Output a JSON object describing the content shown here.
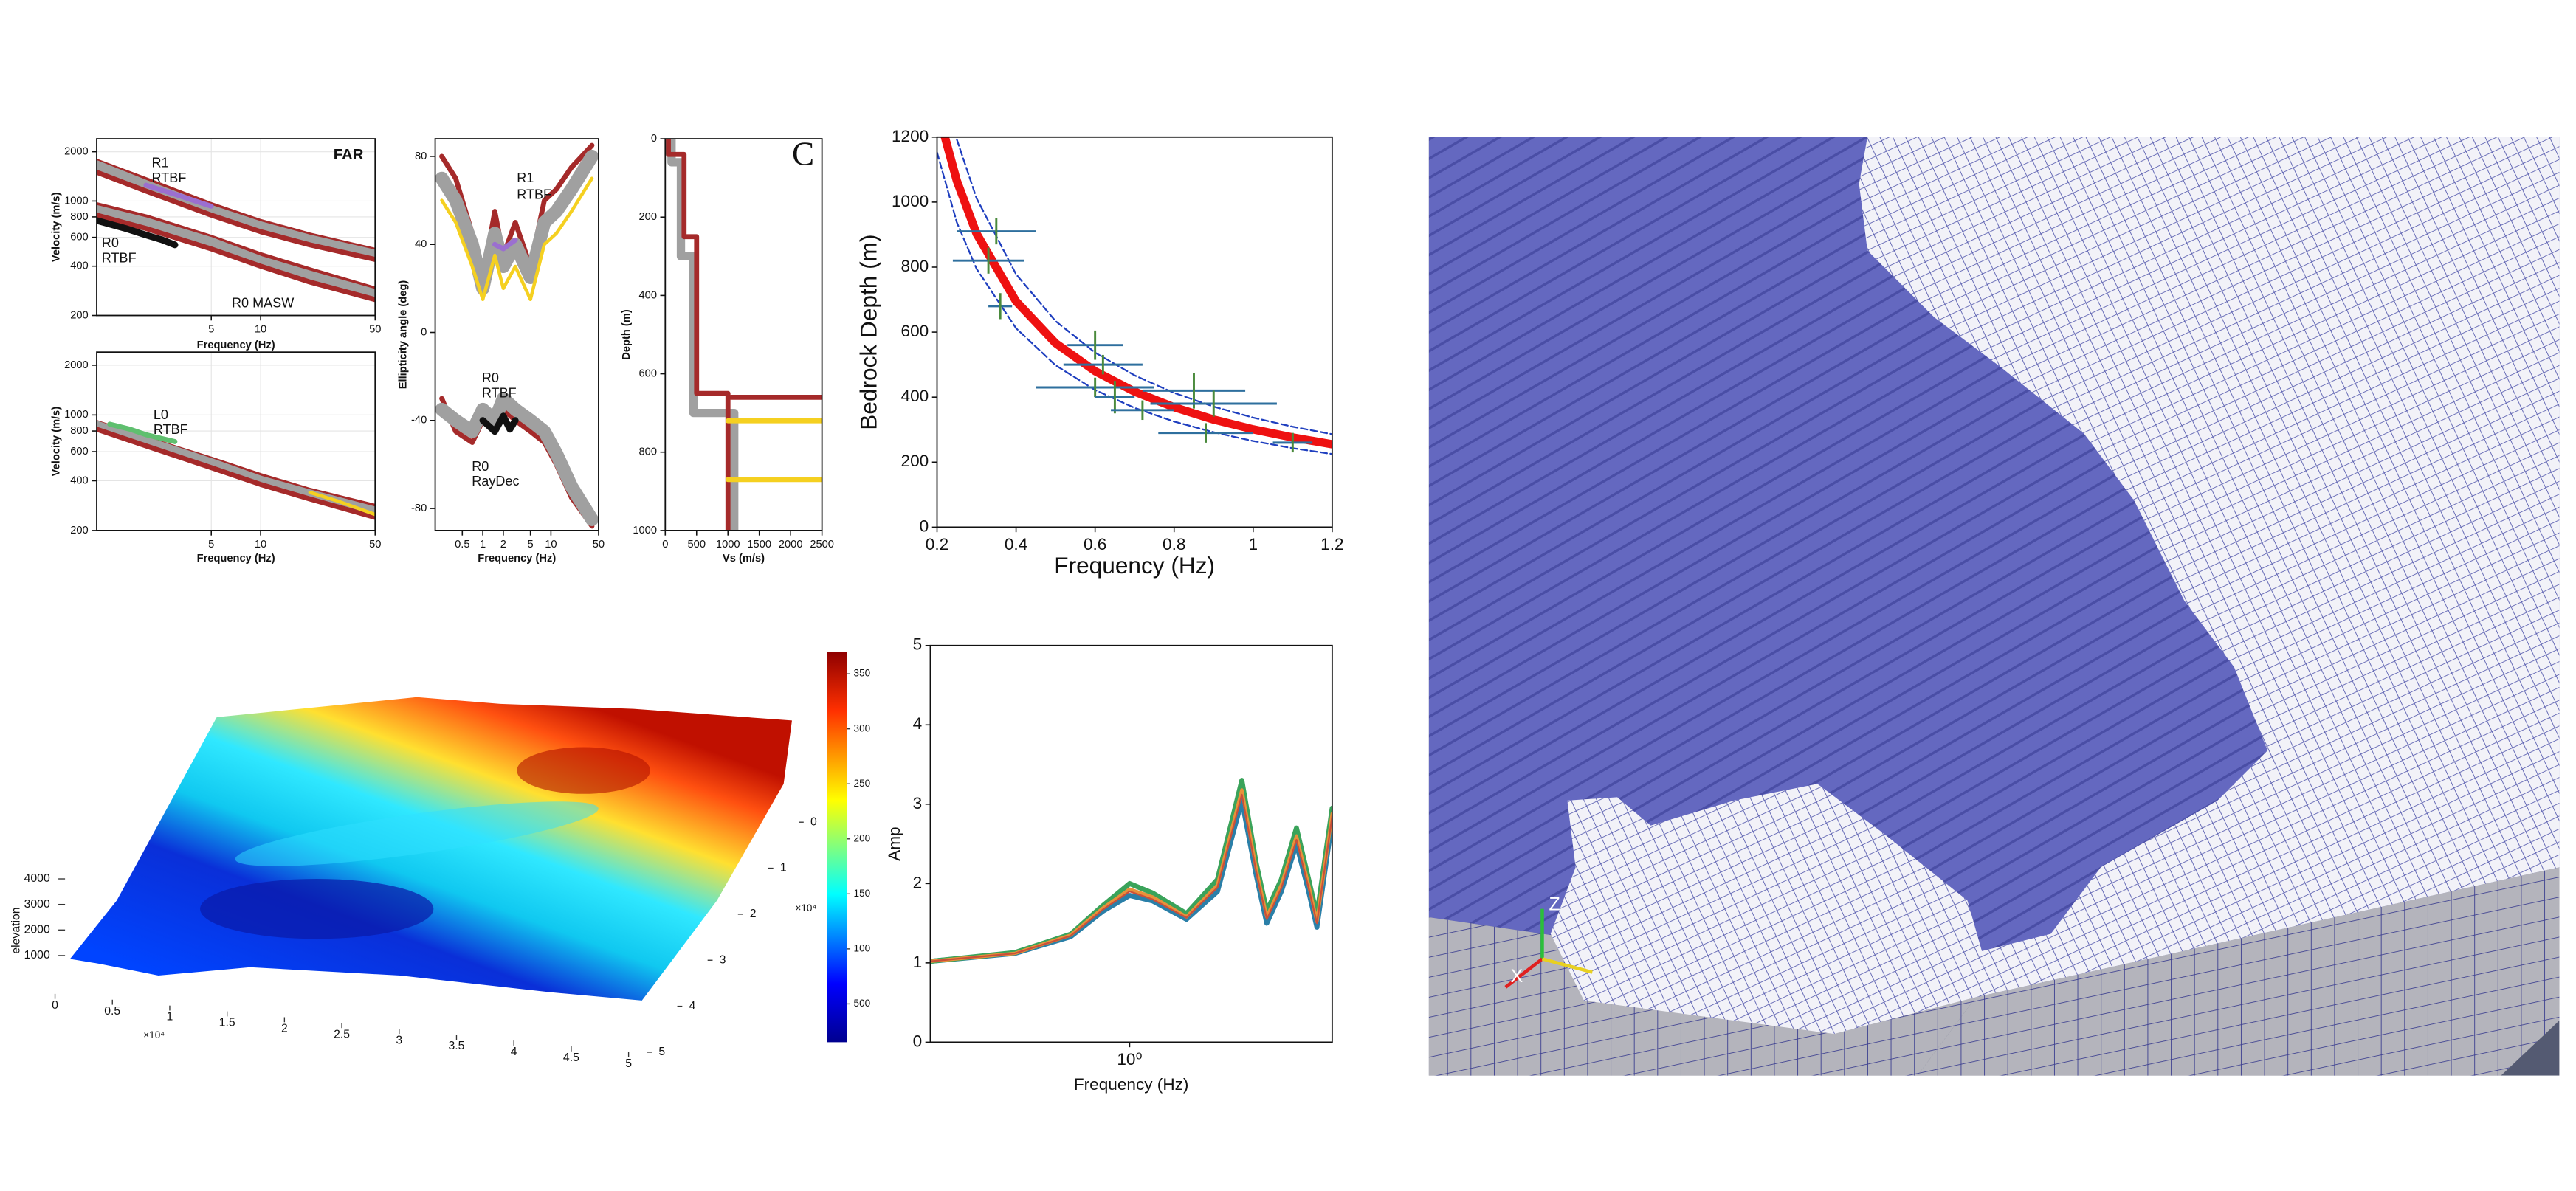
{
  "chart_data": [
    {
      "type": "line",
      "xlabel": "Frequency (Hz)",
      "ylabel": "Velocity (m/s)",
      "xlog": true,
      "ylog": true,
      "grid": true,
      "xlim": [
        1,
        50
      ],
      "xticks": [
        5,
        10,
        50
      ],
      "ylim": [
        200,
        2400
      ],
      "yticks": [
        200,
        400,
        600,
        800,
        1000,
        2000
      ],
      "annotations": [
        "FAR",
        "R1",
        "RTBF",
        "R0",
        "RTBF",
        "R0 MASW"
      ],
      "series": [
        {
          "color": "#a52a2a",
          "linewidth": 3,
          "x": [
            1,
            2,
            5,
            10,
            20,
            50
          ],
          "values": [
            1750,
            1350,
            950,
            750,
            620,
            500
          ]
        },
        {
          "color": "#a0a0a0",
          "linewidth": 6,
          "x": [
            1,
            2,
            5,
            10,
            20,
            50
          ],
          "values": [
            1650,
            1250,
            880,
            700,
            580,
            470
          ]
        },
        {
          "color": "#a52a2a",
          "linewidth": 3,
          "x": [
            1,
            2,
            5,
            10,
            20,
            50
          ],
          "values": [
            1500,
            1150,
            820,
            650,
            540,
            440
          ]
        },
        {
          "color": "#a52a2a",
          "linewidth": 3,
          "x": [
            1,
            2,
            5,
            10,
            20,
            50
          ],
          "values": [
            950,
            800,
            600,
            470,
            380,
            290
          ]
        },
        {
          "color": "#a0a0a0",
          "linewidth": 6,
          "x": [
            1,
            2,
            5,
            10,
            20,
            50
          ],
          "values": [
            880,
            740,
            560,
            430,
            350,
            270
          ]
        },
        {
          "color": "#a52a2a",
          "linewidth": 3,
          "x": [
            1,
            2,
            5,
            10,
            20,
            50
          ],
          "values": [
            820,
            680,
            510,
            400,
            320,
            250
          ]
        },
        {
          "color": "#111111",
          "linewidth": 4,
          "x": [
            1,
            1.5,
            2,
            2.5,
            3
          ],
          "values": [
            760,
            680,
            620,
            580,
            540
          ]
        },
        {
          "color": "#9b6fd0",
          "linewidth": 3,
          "x": [
            2,
            3,
            4,
            5
          ],
          "values": [
            1250,
            1100,
            1000,
            930
          ]
        }
      ]
    },
    {
      "type": "line",
      "xlabel": "Frequency (Hz)",
      "ylabel": "Velocity (m/s)",
      "xlog": true,
      "ylog": true,
      "grid": true,
      "xlim": [
        1,
        50
      ],
      "xticks": [
        5,
        10,
        50
      ],
      "ylim": [
        200,
        2400
      ],
      "yticks": [
        200,
        400,
        600,
        800,
        1000,
        2000
      ],
      "annotations": [
        "L0",
        "RTBF"
      ],
      "series": [
        {
          "color": "#a52a2a",
          "linewidth": 3,
          "x": [
            1,
            2,
            5,
            10,
            20,
            50
          ],
          "values": [
            900,
            720,
            540,
            430,
            350,
            280
          ]
        },
        {
          "color": "#a0a0a0",
          "linewidth": 6,
          "x": [
            1,
            2,
            5,
            10,
            20,
            50
          ],
          "values": [
            860,
            690,
            510,
            400,
            330,
            260
          ]
        },
        {
          "color": "#a52a2a",
          "linewidth": 3,
          "x": [
            1,
            2,
            5,
            10,
            20,
            50
          ],
          "values": [
            820,
            650,
            480,
            380,
            310,
            240
          ]
        },
        {
          "color": "#f5d020",
          "linewidth": 2,
          "x": [
            20,
            30,
            50
          ],
          "values": [
            340,
            300,
            250
          ]
        },
        {
          "color": "#5fbf6f",
          "linewidth": 3,
          "x": [
            1.2,
            1.6,
            2,
            2.5,
            3
          ],
          "values": [
            880,
            820,
            760,
            720,
            690
          ]
        }
      ]
    },
    {
      "type": "line",
      "xlabel": "Frequency (Hz)",
      "ylabel": "Ellipticity angle (deg)",
      "xlog": true,
      "ylog": false,
      "grid": false,
      "xlim": [
        0.2,
        50
      ],
      "xticks": [
        0.5,
        1,
        2,
        5,
        10,
        50
      ],
      "ylim": [
        -90,
        88
      ],
      "yticks": [
        -80,
        -40,
        0,
        40,
        80
      ],
      "annotations": [
        "R1",
        "RTBF",
        "R0",
        "RTBF",
        "R0",
        "RayDec"
      ],
      "series": [
        {
          "color": "#a52a2a",
          "linewidth": 3,
          "x": [
            0.25,
            0.4,
            0.7,
            1,
            1.5,
            2,
            3,
            5,
            8,
            12,
            20,
            40
          ],
          "values": [
            80,
            70,
            45,
            25,
            55,
            35,
            50,
            30,
            60,
            65,
            75,
            85
          ]
        },
        {
          "color": "#a0a0a0",
          "linewidth": 8,
          "x": [
            0.25,
            0.4,
            0.7,
            1,
            1.5,
            2,
            3,
            5,
            8,
            12,
            20,
            40
          ],
          "values": [
            70,
            60,
            40,
            20,
            45,
            30,
            40,
            25,
            50,
            55,
            65,
            80
          ]
        },
        {
          "color": "#f5d020",
          "linewidth": 2,
          "x": [
            0.25,
            0.4,
            0.7,
            1,
            1.5,
            2,
            3,
            5,
            8,
            12,
            20,
            40
          ],
          "values": [
            60,
            50,
            30,
            15,
            35,
            20,
            30,
            15,
            40,
            45,
            55,
            70
          ]
        },
        {
          "color": "#9b6fd0",
          "linewidth": 3,
          "x": [
            1.5,
            2,
            3
          ],
          "values": [
            40,
            38,
            42
          ]
        },
        {
          "color": "#a52a2a",
          "linewidth": 3,
          "x": [
            0.25,
            0.4,
            0.7,
            1,
            1.5,
            2,
            3,
            5,
            8,
            12,
            20,
            40
          ],
          "values": [
            -30,
            -45,
            -50,
            -40,
            -45,
            -35,
            -40,
            -45,
            -50,
            -60,
            -75,
            -88
          ]
        },
        {
          "color": "#a0a0a0",
          "linewidth": 8,
          "x": [
            0.25,
            0.4,
            0.7,
            1,
            1.5,
            2,
            3,
            5,
            8,
            12,
            20,
            40
          ],
          "values": [
            -35,
            -40,
            -45,
            -35,
            -40,
            -30,
            -35,
            -40,
            -45,
            -55,
            -70,
            -85
          ]
        },
        {
          "color": "#111111",
          "linewidth": 4,
          "x": [
            1,
            1.5,
            2,
            2.5,
            3
          ],
          "values": [
            -40,
            -45,
            -38,
            -44,
            -40
          ]
        }
      ]
    },
    {
      "type": "line",
      "xlabel": "Vs (m/s)",
      "ylabel": "Depth (m)",
      "xlog": false,
      "ylog": false,
      "grid": false,
      "xlim": [
        0,
        2500
      ],
      "xticks": [
        0,
        500,
        1000,
        1500,
        2000,
        2500
      ],
      "ylim": [
        1000,
        0
      ],
      "yticks": [
        0,
        200,
        400,
        600,
        800,
        1000
      ],
      "annotations": [
        "C"
      ],
      "series": [
        {
          "color": "#a0a0a0",
          "linewidth": 5,
          "x": [
            100,
            100,
            250,
            250,
            450,
            450,
            1100,
            1100
          ],
          "values": [
            0,
            60,
            60,
            300,
            300,
            700,
            700,
            1000
          ]
        },
        {
          "color": "#a52a2a",
          "linewidth": 3,
          "x": [
            50,
            50,
            300,
            300,
            500,
            500,
            1000,
            1000
          ],
          "values": [
            0,
            40,
            40,
            250,
            250,
            650,
            650,
            1000
          ]
        },
        {
          "color": "#a52a2a",
          "linewidth": 3,
          "x": [
            1050,
            2500
          ],
          "values": [
            660,
            660
          ]
        },
        {
          "color": "#f5d020",
          "linewidth": 3,
          "x": [
            1000,
            2500
          ],
          "values": [
            720,
            720
          ]
        },
        {
          "color": "#f5d020",
          "linewidth": 3,
          "x": [
            1000,
            2500
          ],
          "values": [
            870,
            870
          ]
        }
      ]
    },
    {
      "type": "line",
      "xlabel": "Frequency (Hz)",
      "ylabel": "Bedrock Depth (m)",
      "xlog": false,
      "ylog": false,
      "grid": false,
      "xlim": [
        0.2,
        1.2
      ],
      "xticks": [
        0.2,
        0.4,
        0.6,
        0.8,
        1.0,
        1.2
      ],
      "ylim": [
        0,
        1200
      ],
      "yticks": [
        0,
        200,
        400,
        600,
        800,
        1000,
        1200
      ],
      "series": [
        {
          "color": "#1f3fbf",
          "linewidth": 1,
          "linestyle": "dashed",
          "x": [
            0.25,
            0.3,
            0.4,
            0.5,
            0.6,
            0.7,
            0.8,
            0.9,
            1.0,
            1.1,
            1.2
          ],
          "values": [
            1193,
            1012,
            778,
            634,
            537,
            467,
            413,
            371,
            337,
            309,
            286
          ]
        },
        {
          "color": "#1f3fbf",
          "linewidth": 1,
          "linestyle": "dashed",
          "x": [
            0.2,
            0.25,
            0.3,
            0.4,
            0.5,
            0.6,
            0.7,
            0.8,
            0.9,
            1.0,
            1.1,
            1.2
          ],
          "values": [
            1153,
            938,
            795,
            612,
            498,
            422,
            367,
            325,
            292,
            265,
            243,
            225
          ]
        },
        {
          "color": "#ee1111",
          "linewidth": 5,
          "x": [
            0.22,
            0.25,
            0.3,
            0.4,
            0.5,
            0.6,
            0.7,
            0.8,
            0.9,
            1.0,
            1.1,
            1.2
          ],
          "values": [
            1200,
            1066,
            903,
            695,
            566,
            480,
            417,
            369,
            331,
            301,
            276,
            255
          ]
        }
      ],
      "points": {
        "color": "#2e6f9e",
        "x": [
          0.35,
          0.33,
          0.36,
          0.6,
          0.62,
          0.6,
          0.65,
          0.72,
          0.85,
          0.9,
          0.88,
          1.1
        ],
        "values": [
          910,
          820,
          680,
          560,
          500,
          430,
          400,
          360,
          420,
          380,
          290,
          260
        ],
        "xerr": [
          0.1,
          0.09,
          0.03,
          0.07,
          0.1,
          0.15,
          0.05,
          0.08,
          0.13,
          0.16,
          0.12,
          0.05
        ],
        "yerr": [
          40,
          40,
          40,
          45,
          30,
          30,
          50,
          30,
          55,
          40,
          30,
          30
        ]
      }
    },
    {
      "type": "surface",
      "zlabel": "elevation",
      "xticks": [
        0,
        0.5,
        1,
        1.5,
        2,
        2.5,
        3,
        3.5,
        4,
        4.5,
        5
      ],
      "yticks": [
        0,
        1,
        2,
        3,
        4,
        5
      ],
      "zticks": [
        1000,
        2000,
        3000,
        4000
      ],
      "x_offset_label": "×10⁴",
      "y_offset_label": "×10⁴",
      "colorbar_ticks": [
        350,
        300,
        250,
        200,
        150,
        100,
        500
      ]
    },
    {
      "type": "line",
      "xlabel": "Frequency (Hz)",
      "ylabel": "Amp",
      "xlog": true,
      "ylog": false,
      "grid": false,
      "xlim": [
        0.3,
        3.4
      ],
      "xticks": [
        {
          "value": 1,
          "label": "10⁰"
        }
      ],
      "ylim": [
        0,
        5
      ],
      "yticks": [
        0,
        1,
        2,
        3,
        4,
        5
      ],
      "series": [
        {
          "color": "#2a7fa8",
          "linewidth": 3,
          "x": [
            0.3,
            0.5,
            0.7,
            0.85,
            1.0,
            1.15,
            1.41,
            1.7,
            1.97,
            2.15,
            2.29,
            2.5,
            2.74,
            2.95,
            3.1,
            3.4
          ],
          "values": [
            1.02,
            1.12,
            1.33,
            1.65,
            1.85,
            1.78,
            1.55,
            1.9,
            3.05,
            2.1,
            1.5,
            1.9,
            2.5,
            1.9,
            1.45,
            2.8
          ]
        },
        {
          "color": "#3aa35a",
          "linewidth": 3,
          "x": [
            0.3,
            0.5,
            0.7,
            0.85,
            1.0,
            1.15,
            1.41,
            1.7,
            1.97,
            2.15,
            2.29,
            2.5,
            2.74,
            2.95,
            3.1,
            3.4
          ],
          "values": [
            1.02,
            1.13,
            1.36,
            1.72,
            2.0,
            1.88,
            1.62,
            2.05,
            3.3,
            2.25,
            1.65,
            2.05,
            2.7,
            2.05,
            1.6,
            2.95
          ]
        },
        {
          "color": "#e8913a",
          "linewidth": 2,
          "x": [
            0.3,
            0.5,
            0.7,
            0.85,
            1.0,
            1.15,
            1.41,
            1.7,
            1.97,
            2.15,
            2.29,
            2.5,
            2.74,
            2.95,
            3.1,
            3.4
          ],
          "values": [
            1.02,
            1.12,
            1.35,
            1.69,
            1.93,
            1.83,
            1.58,
            1.98,
            3.18,
            2.18,
            1.58,
            1.98,
            2.6,
            1.98,
            1.52,
            2.88
          ]
        },
        {
          "color": "#c9503a",
          "linewidth": 1,
          "x": [
            0.3,
            0.5,
            0.7,
            0.85,
            1.0,
            1.15,
            1.41,
            1.7,
            1.97,
            2.15,
            2.29,
            2.5,
            2.74,
            2.95,
            3.1,
            3.4
          ],
          "values": [
            1.02,
            1.12,
            1.34,
            1.67,
            1.9,
            1.8,
            1.57,
            1.95,
            3.12,
            2.14,
            1.55,
            1.94,
            2.55,
            1.94,
            1.5,
            2.85
          ]
        }
      ]
    }
  ],
  "mesh_view": {
    "axis_labels": [
      "Z",
      "X"
    ]
  }
}
